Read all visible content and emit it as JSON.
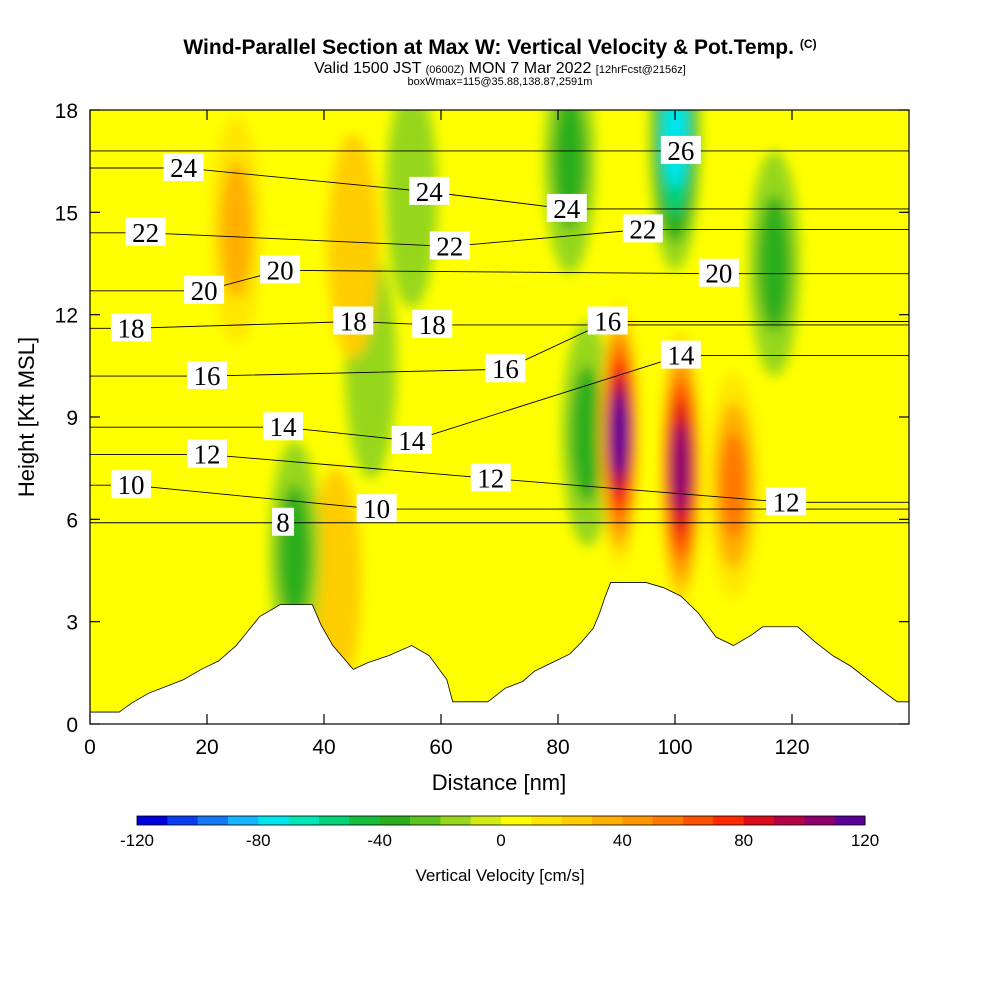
{
  "header": {
    "title": "Wind-Parallel Section at Max W: Vertical Velocity & Pot.Temp.",
    "copyright": "(C)",
    "valid_prefix": "Valid 1500 JST",
    "valid_utc": "(0600Z)",
    "valid_date": "MON 7 Mar 2022",
    "forecast": "[12hrFcst@2156z]",
    "box": "boxWmax=115@35.88,138.87,2591m"
  },
  "chart_data": {
    "type": "heatmap",
    "xlabel": "Distance [nm]",
    "ylabel": "Height [Kft MSL]",
    "xlim": [
      0,
      140
    ],
    "ylim": [
      0,
      18
    ],
    "x_ticks": [
      0,
      20,
      40,
      60,
      80,
      100,
      120
    ],
    "y_ticks": [
      0,
      3,
      6,
      9,
      12,
      15,
      18
    ],
    "colorbar": {
      "label": "Vertical Velocity [cm/s]",
      "min": -120,
      "max": 120,
      "step": 10,
      "tick_values": [
        -120,
        -80,
        -40,
        0,
        40,
        80,
        120
      ],
      "colors": [
        "#0000dc",
        "#0a3cf0",
        "#1478f5",
        "#14b4ff",
        "#00e6f0",
        "#00e6b4",
        "#00d278",
        "#14be3c",
        "#2aae1e",
        "#5ac31e",
        "#96d71e",
        "#d2eb14",
        "#ffff00",
        "#ffe600",
        "#ffcd00",
        "#ffaf00",
        "#ff9600",
        "#ff7800",
        "#ff5000",
        "#ff2800",
        "#dc0a1e",
        "#b40046",
        "#8c006e",
        "#5a0096"
      ]
    },
    "vertical_velocity_features": [
      {
        "x": 90.5,
        "y": 8.5,
        "value": 115,
        "note": "max updraft core"
      },
      {
        "x": 101,
        "y": 7.5,
        "value": 100
      },
      {
        "x": 110,
        "y": 7.0,
        "value": 55
      },
      {
        "x": 100,
        "y": 17.2,
        "value": -80
      },
      {
        "x": 117,
        "y": 13.5,
        "value": -40
      },
      {
        "x": 82,
        "y": 16.5,
        "value": -40
      },
      {
        "x": 85,
        "y": 8.5,
        "value": -40
      },
      {
        "x": 55,
        "y": 15.5,
        "value": -20
      },
      {
        "x": 48,
        "y": 10.5,
        "value": -20
      },
      {
        "x": 35,
        "y": 5.0,
        "value": -40
      },
      {
        "x": 25,
        "y": 14.5,
        "value": 30
      },
      {
        "x": 45,
        "y": 14.0,
        "value": 25
      },
      {
        "x": 42,
        "y": 4.2,
        "value": 25
      }
    ],
    "isentropes": [
      {
        "label": "8",
        "x": 33,
        "y": 5.9
      },
      {
        "label": "10",
        "x": 7,
        "y": 7.0
      },
      {
        "label": "10",
        "x": 49,
        "y": 6.3
      },
      {
        "label": "12",
        "x": 20,
        "y": 7.9
      },
      {
        "label": "12",
        "x": 68.5,
        "y": 7.2
      },
      {
        "label": "12",
        "x": 119,
        "y": 6.5
      },
      {
        "label": "14",
        "x": 33,
        "y": 8.7
      },
      {
        "label": "14",
        "x": 55,
        "y": 8.3
      },
      {
        "label": "14",
        "x": 101,
        "y": 10.8
      },
      {
        "label": "16",
        "x": 20,
        "y": 10.2
      },
      {
        "label": "16",
        "x": 71,
        "y": 10.4
      },
      {
        "label": "16",
        "x": 88.5,
        "y": 11.8
      },
      {
        "label": "18",
        "x": 7,
        "y": 11.6
      },
      {
        "label": "18",
        "x": 45,
        "y": 11.8
      },
      {
        "label": "18",
        "x": 58.5,
        "y": 11.7
      },
      {
        "label": "20",
        "x": 19.5,
        "y": 12.7
      },
      {
        "label": "20",
        "x": 32.5,
        "y": 13.3
      },
      {
        "label": "20",
        "x": 107.5,
        "y": 13.2
      },
      {
        "label": "22",
        "x": 9.5,
        "y": 14.4
      },
      {
        "label": "22",
        "x": 61.5,
        "y": 14.0
      },
      {
        "label": "22",
        "x": 94.5,
        "y": 14.5
      },
      {
        "label": "24",
        "x": 16,
        "y": 16.3
      },
      {
        "label": "24",
        "x": 58,
        "y": 15.6
      },
      {
        "label": "24",
        "x": 81.5,
        "y": 15.1
      },
      {
        "label": "26",
        "x": 101,
        "y": 16.8
      }
    ],
    "terrain_profile": [
      [
        0,
        0.35
      ],
      [
        5,
        0.35
      ],
      [
        7,
        0.6
      ],
      [
        10,
        0.9
      ],
      [
        11.5,
        1.0
      ],
      [
        16,
        1.3
      ],
      [
        19,
        1.6
      ],
      [
        22,
        1.85
      ],
      [
        25,
        2.3
      ],
      [
        29,
        3.15
      ],
      [
        32.5,
        3.5
      ],
      [
        38,
        3.5
      ],
      [
        39.5,
        2.9
      ],
      [
        41.5,
        2.3
      ],
      [
        45,
        1.6
      ],
      [
        47.5,
        1.8
      ],
      [
        51,
        2.0
      ],
      [
        55,
        2.3
      ],
      [
        58,
        2.0
      ],
      [
        61,
        1.3
      ],
      [
        62,
        0.65
      ],
      [
        68,
        0.65
      ],
      [
        71,
        1.05
      ],
      [
        74,
        1.25
      ],
      [
        76,
        1.55
      ],
      [
        79,
        1.8
      ],
      [
        82,
        2.05
      ],
      [
        84,
        2.4
      ],
      [
        86,
        2.8
      ],
      [
        87,
        3.2
      ],
      [
        88,
        3.7
      ],
      [
        89,
        4.15
      ],
      [
        95,
        4.15
      ],
      [
        98,
        4.0
      ],
      [
        101,
        3.75
      ],
      [
        104,
        3.25
      ],
      [
        107,
        2.55
      ],
      [
        110,
        2.3
      ],
      [
        113,
        2.6
      ],
      [
        115,
        2.85
      ],
      [
        121,
        2.85
      ],
      [
        124,
        2.4
      ],
      [
        127,
        2.0
      ],
      [
        130,
        1.7
      ],
      [
        133,
        1.3
      ],
      [
        136,
        0.9
      ],
      [
        138,
        0.65
      ],
      [
        140,
        0.65
      ]
    ]
  }
}
